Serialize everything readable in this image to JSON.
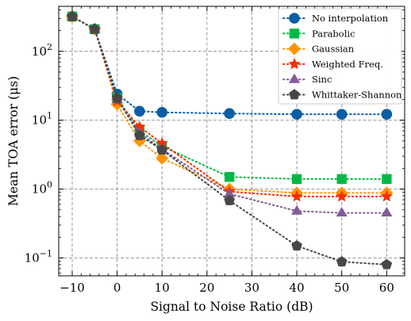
{
  "chart_data": {
    "type": "line",
    "title": "",
    "xlabel": "Signal to Noise Ratio (dB)",
    "ylabel": "Mean TOA error (μs)",
    "yscale": "log",
    "xlim": [
      -13,
      64
    ],
    "ylim": [
      0.055,
      450
    ],
    "grid": true,
    "legend_position": "top-right",
    "x_ticks": [
      -10,
      0,
      10,
      20,
      30,
      40,
      50,
      60
    ],
    "x_tick_labels": [
      "−10",
      "0",
      "10",
      "20",
      "30",
      "40",
      "50",
      "60"
    ],
    "y_ticks": [
      0.1,
      1,
      10,
      100
    ],
    "y_tick_labels": [
      {
        "base": "10",
        "exp": "−1"
      },
      {
        "base": "10",
        "exp": "0"
      },
      {
        "base": "10",
        "exp": "1"
      },
      {
        "base": "10",
        "exp": "2"
      }
    ],
    "x": [
      -10,
      -5,
      0,
      5,
      10,
      25,
      40,
      50,
      60
    ],
    "series": [
      {
        "name": "No interpolation",
        "marker": "circle",
        "color": "#0c5da5",
        "values": [
          320,
          210,
          24,
          13.5,
          13,
          12.5,
          12.2,
          12.2,
          12.2
        ]
      },
      {
        "name": "Parabolic",
        "marker": "square",
        "color": "#00b945",
        "values": [
          320,
          210,
          21,
          7,
          4.2,
          1.5,
          1.4,
          1.4,
          1.4
        ]
      },
      {
        "name": "Gaussian",
        "marker": "diamond",
        "color": "#ff9500",
        "values": [
          320,
          210,
          17,
          5,
          2.8,
          1.0,
          0.88,
          0.88,
          0.88
        ]
      },
      {
        "name": "Weighted Freq.",
        "marker": "star",
        "color": "#ff2c00",
        "values": [
          320,
          210,
          19,
          8,
          4.6,
          0.92,
          0.78,
          0.78,
          0.78
        ]
      },
      {
        "name": "Sinc",
        "marker": "triangle",
        "color": "#845b97",
        "values": [
          320,
          210,
          20,
          6.5,
          3.8,
          0.85,
          0.48,
          0.45,
          0.45
        ]
      },
      {
        "name": "Whittaker-Shannon",
        "marker": "pentagon",
        "color": "#474747",
        "values": [
          320,
          210,
          21,
          6,
          3.7,
          0.68,
          0.15,
          0.088,
          0.08
        ]
      }
    ]
  }
}
